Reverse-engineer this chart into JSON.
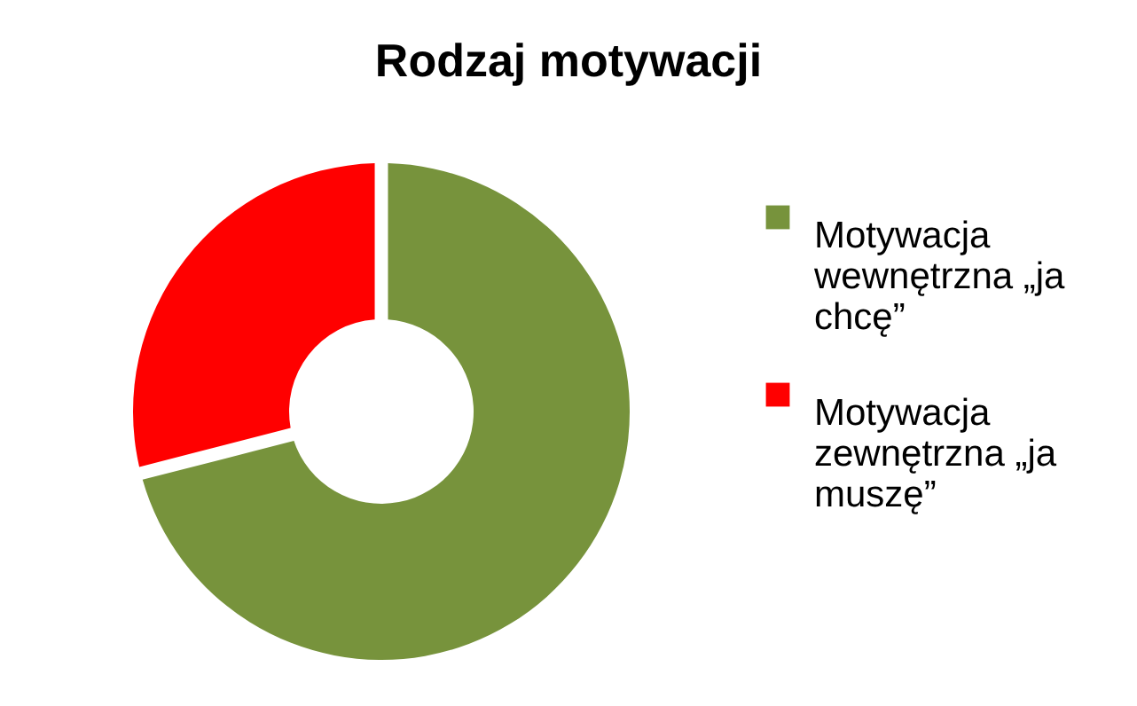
{
  "chart_data": {
    "type": "donut",
    "title": "Rodzaj motywacji",
    "categories": [
      "Motywacja wewnętrzna „ja chcę”",
      "Motywacja zewnętrzna „ja muszę”"
    ],
    "values": [
      71,
      29
    ],
    "colors": [
      "#77933c",
      "#ff0000"
    ],
    "legend": "right"
  }
}
